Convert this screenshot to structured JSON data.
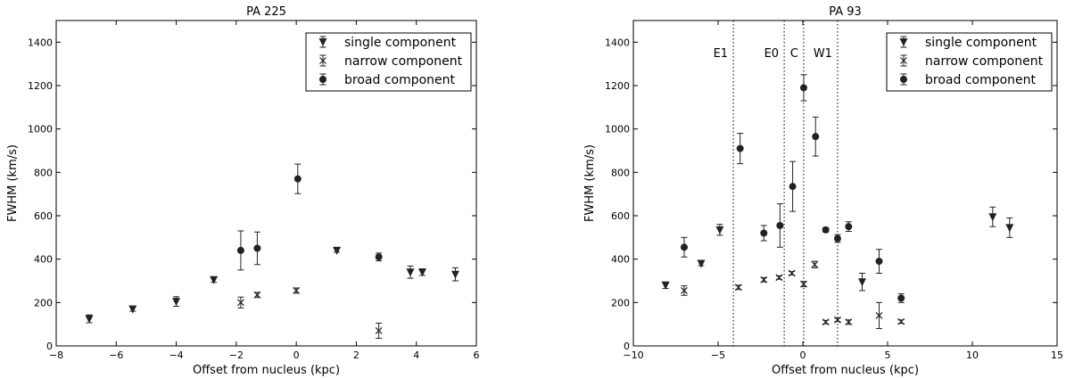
{
  "chart_data": [
    {
      "type": "scatter",
      "title": "PA 225",
      "xlabel": "Offset from nucleus (kpc)",
      "ylabel": "FWHM (km/s)",
      "xlim": [
        -8,
        6
      ],
      "ylim": [
        0,
        1500
      ],
      "xticks": [
        "−8",
        "−6",
        "−4",
        "−2",
        "0",
        "2",
        "4",
        "6"
      ],
      "xtick_values": [
        -8,
        -6,
        -4,
        -2,
        0,
        2,
        4,
        6
      ],
      "yticks": [
        "0",
        "200",
        "400",
        "600",
        "800",
        "1000",
        "1200",
        "1400"
      ],
      "ytick_values": [
        0,
        200,
        400,
        600,
        800,
        1000,
        1200,
        1400
      ],
      "grid": false,
      "legend_position": "top-right",
      "series": [
        {
          "name": "single component",
          "marker": "triangle-down",
          "points": [
            {
              "x": -6.9,
              "y": 125,
              "err": 18
            },
            {
              "x": -5.45,
              "y": 170,
              "err": 10
            },
            {
              "x": -4.0,
              "y": 205,
              "err": 22
            },
            {
              "x": -2.75,
              "y": 305,
              "err": 12
            },
            {
              "x": 1.35,
              "y": 440,
              "err": 8
            },
            {
              "x": 3.8,
              "y": 340,
              "err": 28
            },
            {
              "x": 4.2,
              "y": 340,
              "err": 15
            },
            {
              "x": 5.3,
              "y": 330,
              "err": 30
            }
          ]
        },
        {
          "name": "narrow component",
          "marker": "x",
          "points": [
            {
              "x": -1.85,
              "y": 200,
              "err": 25
            },
            {
              "x": -1.3,
              "y": 235,
              "err": 12
            },
            {
              "x": 0.0,
              "y": 255,
              "err": 12
            },
            {
              "x": 2.75,
              "y": 70,
              "err": 35
            }
          ]
        },
        {
          "name": "broad component",
          "marker": "circle",
          "points": [
            {
              "x": 0.05,
              "y": 770,
              "err": 68
            },
            {
              "x": -1.85,
              "y": 440,
              "err": 90
            },
            {
              "x": -1.3,
              "y": 450,
              "err": 75
            },
            {
              "x": 2.75,
              "y": 410,
              "err": 18
            }
          ]
        }
      ],
      "vlines": []
    },
    {
      "type": "scatter",
      "title": "PA 93",
      "xlabel": "Offset from nucleus (kpc)",
      "ylabel": "FWHM (km/s)",
      "xlim": [
        -10,
        15
      ],
      "ylim": [
        0,
        1500
      ],
      "xticks": [
        "−10",
        "−5",
        "0",
        "5",
        "10",
        "15"
      ],
      "xtick_values": [
        -10,
        -5,
        0,
        5,
        10,
        15
      ],
      "yticks": [
        "0",
        "200",
        "400",
        "600",
        "800",
        "1000",
        "1200",
        "1400"
      ],
      "ytick_values": [
        0,
        200,
        400,
        600,
        800,
        1000,
        1200,
        1400
      ],
      "grid": false,
      "legend_position": "top-right",
      "series": [
        {
          "name": "single component",
          "marker": "triangle-down",
          "points": [
            {
              "x": -8.1,
              "y": 280,
              "err": 15
            },
            {
              "x": -6.0,
              "y": 380,
              "err": 10
            },
            {
              "x": -4.9,
              "y": 535,
              "err": 25
            },
            {
              "x": 3.5,
              "y": 295,
              "err": 40
            },
            {
              "x": 11.2,
              "y": 595,
              "err": 45
            },
            {
              "x": 12.2,
              "y": 545,
              "err": 45
            }
          ]
        },
        {
          "name": "narrow component",
          "marker": "x",
          "points": [
            {
              "x": -7.0,
              "y": 255,
              "err": 22
            },
            {
              "x": -3.8,
              "y": 270,
              "err": 10
            },
            {
              "x": -2.3,
              "y": 305,
              "err": 10
            },
            {
              "x": -1.4,
              "y": 315,
              "err": 8
            },
            {
              "x": -0.65,
              "y": 335,
              "err": 8
            },
            {
              "x": 0.05,
              "y": 285,
              "err": 12
            },
            {
              "x": 0.7,
              "y": 375,
              "err": 15
            },
            {
              "x": 1.35,
              "y": 110,
              "err": 8
            },
            {
              "x": 2.05,
              "y": 120,
              "err": 8
            },
            {
              "x": 2.7,
              "y": 110,
              "err": 10
            },
            {
              "x": 4.5,
              "y": 140,
              "err": 60
            },
            {
              "x": 5.8,
              "y": 112,
              "err": 8
            }
          ]
        },
        {
          "name": "broad component",
          "marker": "circle",
          "points": [
            {
              "x": -7.0,
              "y": 455,
              "err": 45
            },
            {
              "x": -3.7,
              "y": 910,
              "err": 70
            },
            {
              "x": -2.3,
              "y": 520,
              "err": 35
            },
            {
              "x": -1.35,
              "y": 555,
              "err": 100
            },
            {
              "x": -0.6,
              "y": 735,
              "err": 115
            },
            {
              "x": 0.05,
              "y": 1190,
              "err": 60
            },
            {
              "x": 0.75,
              "y": 965,
              "err": 90
            },
            {
              "x": 1.35,
              "y": 535,
              "err": 10
            },
            {
              "x": 2.05,
              "y": 495,
              "err": 18
            },
            {
              "x": 2.7,
              "y": 550,
              "err": 22
            },
            {
              "x": 4.5,
              "y": 390,
              "err": 55
            },
            {
              "x": 5.8,
              "y": 220,
              "err": 20
            }
          ]
        }
      ],
      "vlines": [
        {
          "x": -4.1,
          "label": "E1"
        },
        {
          "x": -1.1,
          "label": "E0"
        },
        {
          "x": 0.05,
          "label": "C"
        },
        {
          "x": 2.05,
          "label": "W1"
        }
      ]
    }
  ]
}
